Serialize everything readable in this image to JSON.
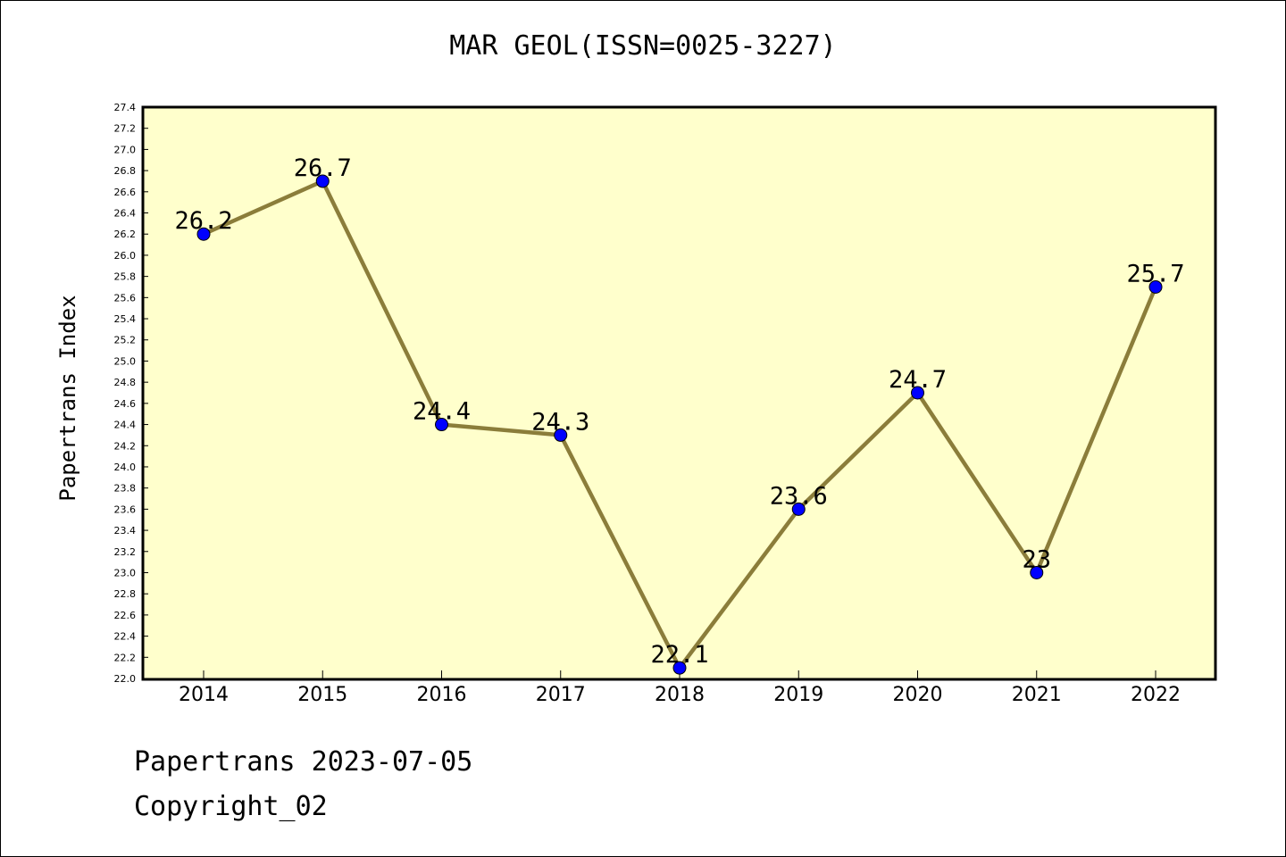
{
  "chart_data": {
    "type": "line",
    "title": "MAR GEOL(ISSN=0025-3227)",
    "xlabel": "",
    "ylabel": "Papertrans Index",
    "x": [
      "2014",
      "2015",
      "2016",
      "2017",
      "2018",
      "2019",
      "2020",
      "2021",
      "2022"
    ],
    "series": [
      {
        "values": [
          26.2,
          26.7,
          24.4,
          24.3,
          22.1,
          23.6,
          24.7,
          23.0,
          25.7
        ]
      }
    ],
    "data_labels": [
      "26.2",
      "26.7",
      "24.4",
      "24.3",
      "22.1",
      "23.6",
      "24.7",
      "23",
      "25.7"
    ],
    "ylim": [
      22.0,
      27.4
    ],
    "ytick_step": 0.2,
    "grid": false,
    "colors": {
      "line": "#8b7d3a",
      "marker": "#0000ff",
      "plot_bg": "#ffffcc"
    }
  },
  "footer": {
    "line1": "Papertrans 2023-07-05",
    "line2": "Copyright_02"
  }
}
